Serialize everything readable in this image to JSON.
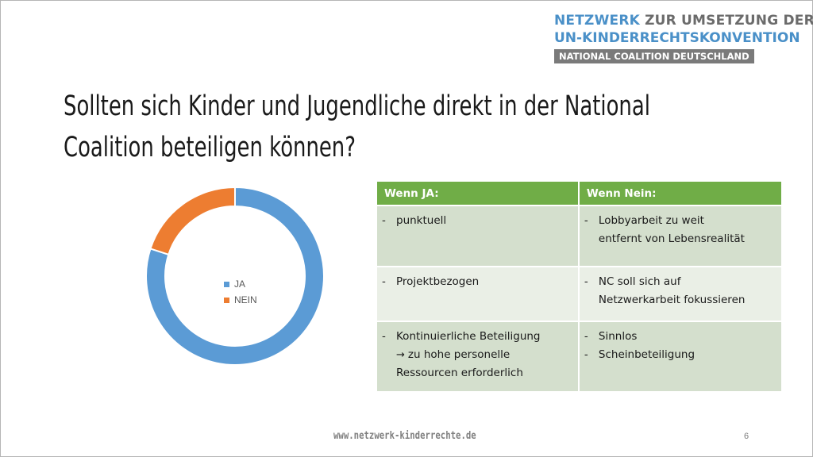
{
  "logo": {
    "line1_part1": "NETZWERK",
    "line1_part2": " ZUR UMSETZUNG DER",
    "line2": "UN-KINDERRECHTSKONVENTION",
    "line3": "NATIONAL COALITION DEUTSCHLAND"
  },
  "slide": {
    "title_line1": "Sollten sich Kinder und Jugendliche direkt in der National",
    "title_line2": "Coalition beteiligen können?"
  },
  "chart_data": {
    "type": "pie",
    "variant": "donut",
    "categories": [
      "JA",
      "NEIN"
    ],
    "values": [
      80,
      20
    ],
    "colors": [
      "#5b9bd5",
      "#ed7d31"
    ],
    "title": "",
    "legend_position": "center"
  },
  "table": {
    "headers": [
      "Wenn JA:",
      "Wenn Nein:"
    ],
    "rows": [
      {
        "ja": [
          {
            "text": "punktuell"
          }
        ],
        "nein": [
          {
            "text": "Lobbyarbeit zu weit"
          },
          {
            "text": "entfernt von Lebensrealität",
            "cont": true
          }
        ]
      },
      {
        "ja": [
          {
            "text": "Projektbezogen"
          }
        ],
        "nein": [
          {
            "text": "NC soll sich auf"
          },
          {
            "text": "Netzwerkarbeit fokussieren",
            "cont": true
          }
        ]
      },
      {
        "ja": [
          {
            "text": "Kontinuierliche Beteiligung"
          },
          {
            "text": "zu hohe personelle",
            "cont": true,
            "arrow": true
          },
          {
            "text": "Ressourcen erforderlich",
            "cont": true
          }
        ],
        "nein": [
          {
            "text": "Sinnlos"
          },
          {
            "text": "Scheinbeteiligung"
          }
        ]
      }
    ]
  },
  "footer": {
    "url": "www.netzwerk-kinderrechte.de",
    "page_number": "6"
  }
}
